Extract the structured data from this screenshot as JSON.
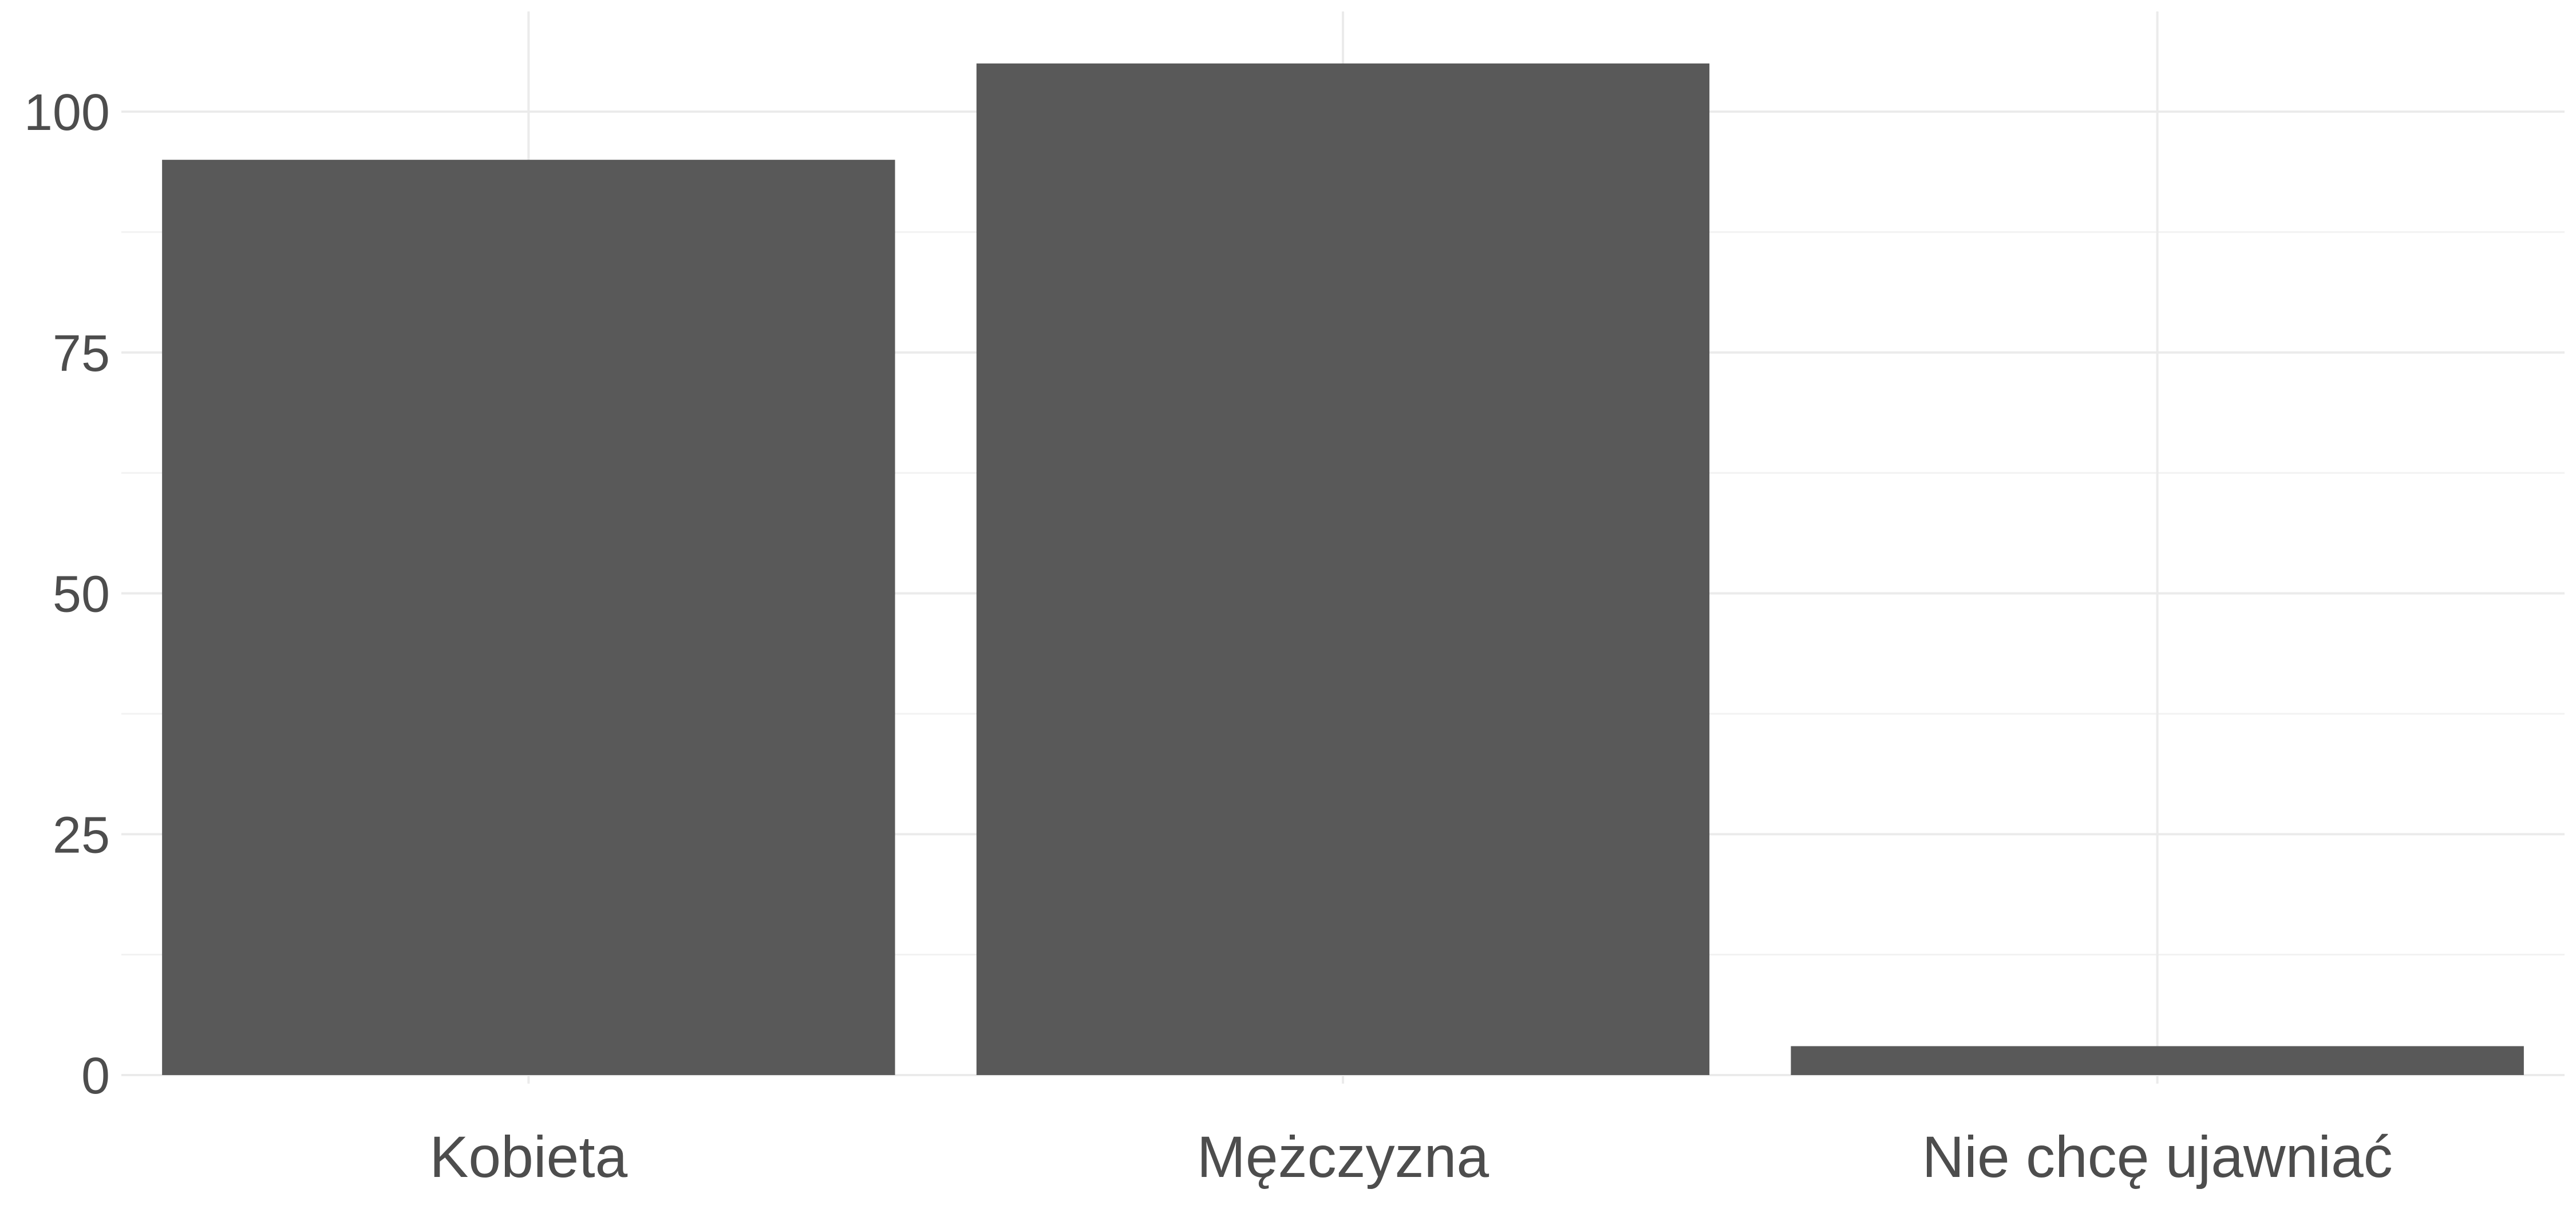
{
  "chart_data": {
    "type": "bar",
    "categories": [
      "Kobieta",
      "Mężczyzna",
      "Nie chcę ujawniać"
    ],
    "values": [
      95,
      105,
      3
    ],
    "ylim": [
      0,
      110
    ],
    "yticks": [
      0,
      25,
      50,
      75,
      100
    ],
    "title": "",
    "xlabel": "",
    "ylabel": "",
    "grid": true,
    "legend": "none",
    "bar_color": "#595959",
    "grid_color": "#ebebeb",
    "text_color": "#4d4d4d"
  }
}
